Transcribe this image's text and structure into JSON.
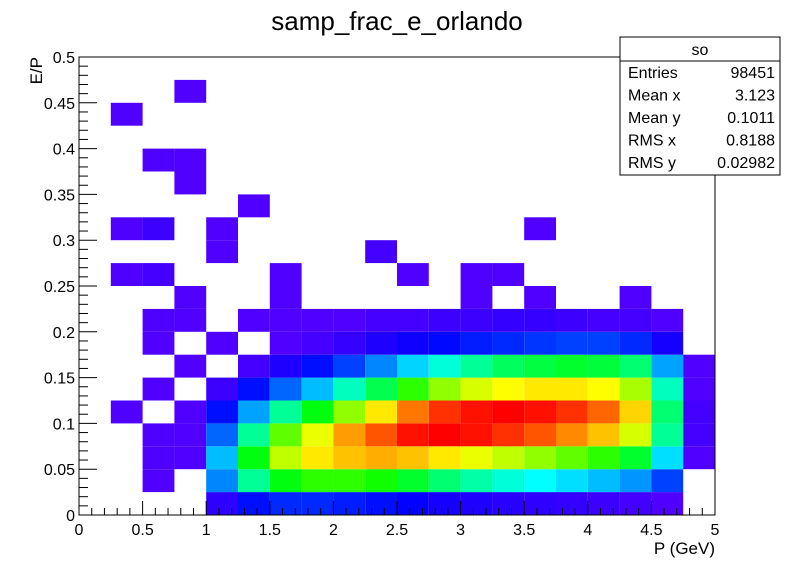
{
  "chart_data": {
    "type": "heatmap",
    "title": "samp_frac_e_orlando",
    "x_label": "P (GeV)",
    "y_label": "E/P",
    "xlim": [
      0,
      5
    ],
    "ylim": [
      0,
      0.5
    ],
    "xticks": [
      0,
      0.5,
      1,
      1.5,
      2,
      2.5,
      3,
      3.5,
      4,
      4.5,
      5
    ],
    "yticks": [
      0,
      0.05,
      0.1,
      0.15,
      0.2,
      0.25,
      0.3,
      0.35,
      0.4,
      0.45,
      0.5
    ],
    "xbins": [
      0,
      0.25,
      0.5,
      0.75,
      1,
      1.25,
      1.5,
      1.75,
      2,
      2.25,
      2.5,
      2.75,
      3,
      3.25,
      3.5,
      3.75,
      4,
      4.25,
      4.5,
      4.75,
      5
    ],
    "ybins": [
      0,
      0.025,
      0.05,
      0.075,
      0.1,
      0.125,
      0.15,
      0.175,
      0.2,
      0.225,
      0.25,
      0.275,
      0.3,
      0.325,
      0.35,
      0.375,
      0.4,
      0.425,
      0.45,
      0.475,
      0.5
    ],
    "z": [
      [
        0,
        0,
        0,
        0,
        5,
        20,
        30,
        30,
        25,
        20,
        15,
        10,
        8,
        6,
        5,
        4,
        3,
        2,
        1,
        0
      ],
      [
        0,
        0,
        1,
        0,
        80,
        300,
        500,
        600,
        600,
        550,
        450,
        350,
        280,
        220,
        180,
        150,
        120,
        90,
        40,
        0
      ],
      [
        0,
        0,
        1,
        1,
        120,
        500,
        900,
        1100,
        1200,
        1250,
        1200,
        1100,
        1000,
        900,
        800,
        700,
        600,
        450,
        150,
        1
      ],
      [
        0,
        0,
        1,
        1,
        60,
        300,
        700,
        1000,
        1300,
        1500,
        1700,
        1750,
        1700,
        1600,
        1500,
        1350,
        1200,
        950,
        300,
        2
      ],
      [
        0,
        1,
        0,
        1,
        20,
        100,
        300,
        500,
        800,
        1100,
        1400,
        1600,
        1700,
        1750,
        1700,
        1600,
        1450,
        1150,
        350,
        2
      ],
      [
        0,
        0,
        1,
        0,
        3,
        20,
        60,
        120,
        250,
        400,
        600,
        800,
        950,
        1050,
        1100,
        1100,
        1050,
        850,
        250,
        1
      ],
      [
        0,
        0,
        0,
        1,
        0,
        2,
        8,
        20,
        40,
        80,
        140,
        220,
        300,
        380,
        420,
        450,
        430,
        350,
        100,
        1
      ],
      [
        0,
        0,
        1,
        0,
        1,
        0,
        1,
        2,
        4,
        8,
        12,
        18,
        25,
        30,
        35,
        40,
        40,
        30,
        10,
        0
      ],
      [
        0,
        0,
        1,
        1,
        0,
        1,
        1,
        1,
        1,
        2,
        2,
        3,
        3,
        4,
        4,
        3,
        2,
        2,
        1,
        0
      ],
      [
        0,
        0,
        0,
        1,
        0,
        0,
        1,
        0,
        0,
        0,
        0,
        0,
        1,
        0,
        1,
        0,
        0,
        1,
        0,
        0
      ],
      [
        0,
        1,
        2,
        0,
        0,
        0,
        1,
        0,
        0,
        0,
        1,
        0,
        1,
        1,
        0,
        0,
        0,
        0,
        0,
        0
      ],
      [
        0,
        0,
        0,
        0,
        1,
        0,
        0,
        0,
        0,
        2,
        0,
        0,
        0,
        0,
        0,
        0,
        0,
        0,
        0,
        0
      ],
      [
        0,
        1,
        3,
        0,
        1,
        0,
        0,
        0,
        0,
        0,
        0,
        0,
        0,
        0,
        1,
        0,
        0,
        0,
        0,
        0
      ],
      [
        0,
        0,
        0,
        0,
        0,
        1,
        0,
        0,
        0,
        0,
        0,
        0,
        0,
        0,
        0,
        0,
        0,
        0,
        0,
        0
      ],
      [
        0,
        0,
        0,
        1,
        0,
        0,
        0,
        0,
        0,
        0,
        0,
        0,
        0,
        0,
        0,
        0,
        0,
        0,
        0,
        0
      ],
      [
        0,
        0,
        1,
        1,
        0,
        0,
        0,
        0,
        0,
        0,
        0,
        0,
        0,
        0,
        0,
        0,
        0,
        0,
        0,
        0
      ],
      [
        0,
        0,
        0,
        0,
        0,
        0,
        0,
        0,
        0,
        0,
        0,
        0,
        0,
        0,
        0,
        0,
        0,
        0,
        0,
        0
      ],
      [
        0,
        1,
        0,
        0,
        0,
        0,
        0,
        0,
        0,
        0,
        0,
        0,
        0,
        0,
        0,
        0,
        0,
        0,
        0,
        0
      ],
      [
        0,
        0,
        0,
        1,
        0,
        0,
        0,
        0,
        0,
        0,
        0,
        0,
        0,
        0,
        0,
        0,
        0,
        0,
        0,
        0
      ],
      [
        0,
        0,
        0,
        0,
        0,
        0,
        0,
        0,
        0,
        0,
        0,
        0,
        0,
        0,
        0,
        0,
        0,
        0,
        0,
        0
      ]
    ]
  },
  "stats_box": {
    "title": "so",
    "rows": [
      {
        "label": "Entries",
        "value": 98451
      },
      {
        "label": "Mean x",
        "value": 3.123
      },
      {
        "label": "Mean y",
        "value": 0.1011
      },
      {
        "label": "RMS x",
        "value": 0.8188
      },
      {
        "label": "RMS y",
        "value": 0.02982
      }
    ]
  }
}
